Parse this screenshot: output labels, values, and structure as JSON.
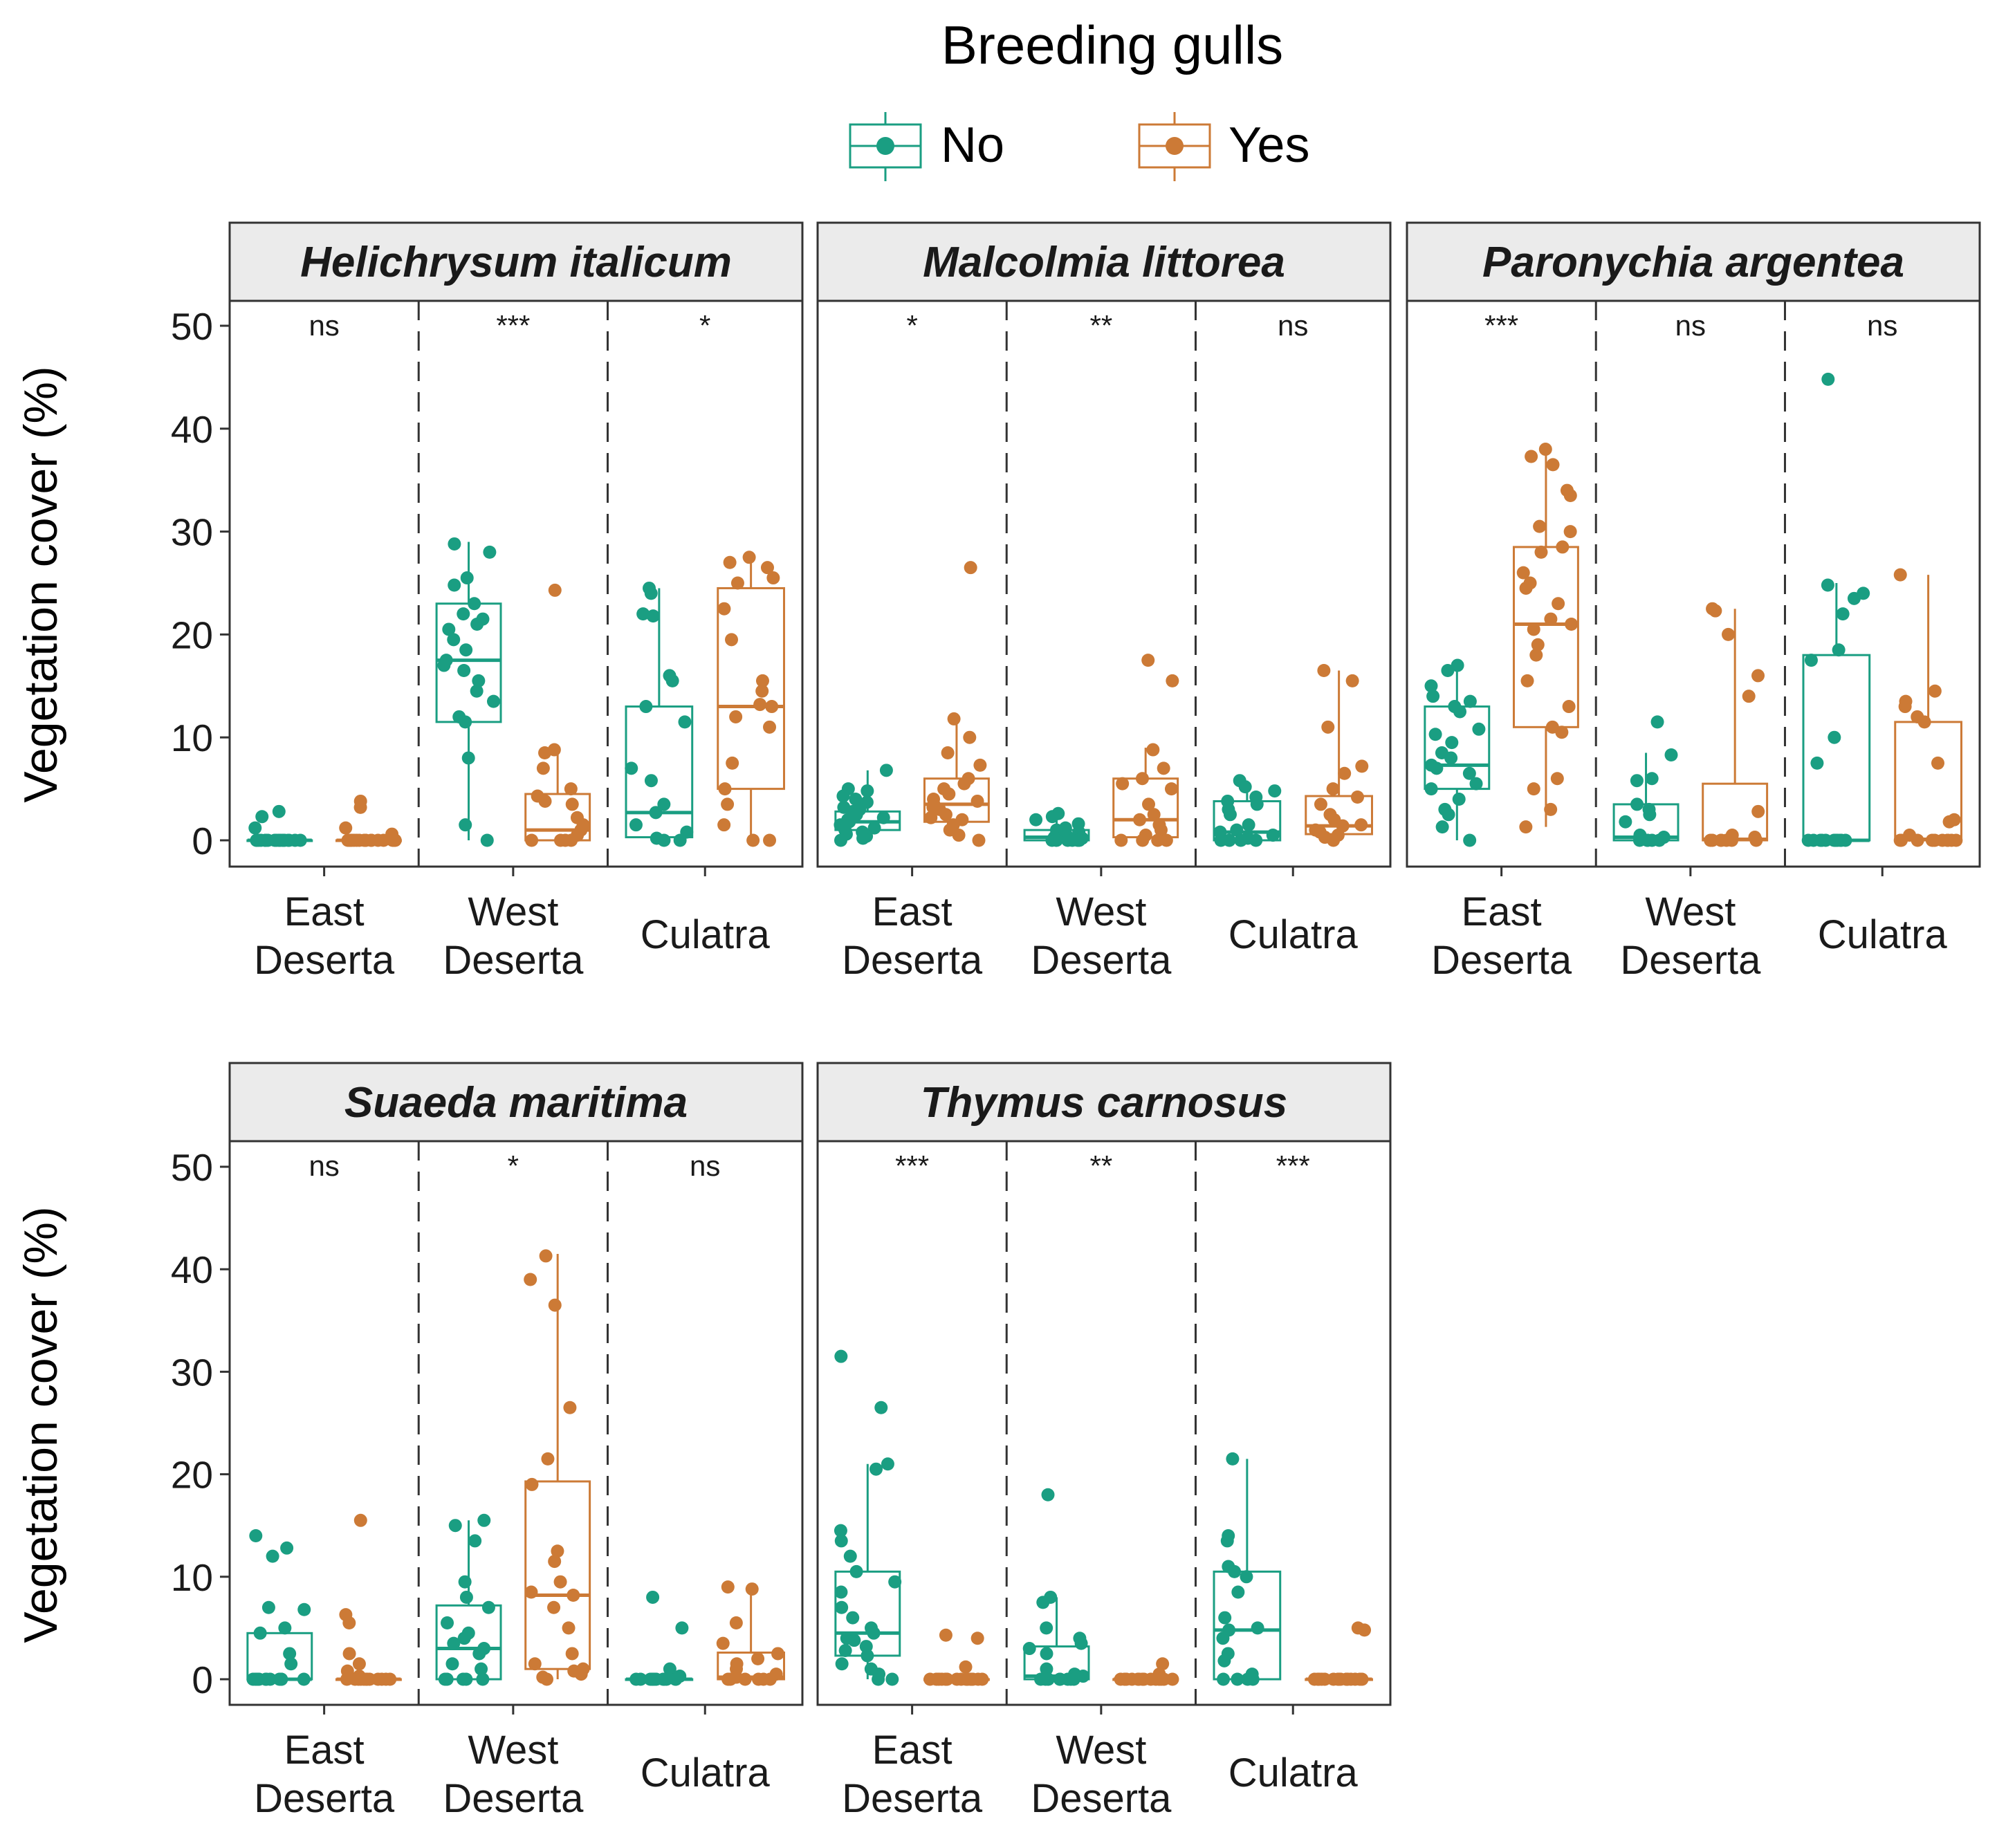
{
  "legend": {
    "title": "Breeding gulls",
    "items": [
      {
        "label": "No",
        "color": "#1a9e82"
      },
      {
        "label": "Yes",
        "color": "#cc7a36"
      }
    ]
  },
  "chart_data": {
    "type": "boxplot-jitter",
    "ylabel": "Vegetation cover (%)",
    "ylim": [
      0,
      50
    ],
    "yticks": [
      0,
      10,
      20,
      30,
      40,
      50
    ],
    "groups": [
      "No",
      "Yes"
    ],
    "sites": [
      "East Deserta",
      "West Deserta",
      "Culatra"
    ],
    "panels": [
      {
        "species": "Helichrysum italicum",
        "significance": [
          "ns",
          "***",
          "*"
        ],
        "sites": [
          {
            "No": {
              "q1": 0,
              "median": 0,
              "q3": 0,
              "wlo": 0,
              "whi": 0,
              "points": [
                0,
                0,
                0,
                0,
                0,
                0,
                0,
                0,
                0,
                0,
                0,
                0,
                0,
                0,
                0,
                0,
                0,
                0,
                0,
                2.8,
                2.3,
                1.2
              ]
            },
            "Yes": {
              "q1": 0,
              "median": 0,
              "q3": 0,
              "wlo": 0,
              "whi": 0,
              "points": [
                0,
                0,
                0,
                0,
                0,
                0,
                0,
                0,
                0,
                0,
                0,
                0,
                0,
                0,
                0,
                0,
                0,
                0,
                3.8,
                3.2,
                1.2,
                0.6
              ]
            }
          },
          {
            "No": {
              "q1": 11.5,
              "median": 17.5,
              "q3": 23,
              "wlo": 0,
              "whi": 29,
              "points": [
                28.8,
                28,
                25.5,
                24.8,
                23,
                22,
                21.5,
                21,
                20.5,
                19.5,
                18.5,
                17.5,
                17,
                16.5,
                15.5,
                14.5,
                13.5,
                12,
                11.5,
                8,
                1.5,
                0
              ]
            },
            "Yes": {
              "q1": 0,
              "median": 1,
              "q3": 4.5,
              "wlo": 0,
              "whi": 9,
              "points": [
                24.3,
                8.8,
                8.5,
                7,
                5,
                4.3,
                3.8,
                3.5,
                2.2,
                1.5,
                1,
                0.5,
                0,
                0,
                0,
                0
              ]
            }
          },
          {
            "No": {
              "q1": 0.3,
              "median": 2.7,
              "q3": 13,
              "wlo": 0,
              "whi": 24.5,
              "points": [
                24.5,
                24,
                22,
                21.8,
                16,
                15.5,
                13,
                11.5,
                7,
                5.8,
                3.5,
                2.7,
                1.5,
                0.8,
                0.2,
                0,
                0
              ]
            },
            "Yes": {
              "q1": 5,
              "median": 13,
              "q3": 24.5,
              "wlo": 0,
              "whi": 27.5,
              "points": [
                27.5,
                27,
                26.5,
                25.5,
                25,
                22.5,
                19.5,
                15.5,
                14.5,
                13.2,
                13,
                12,
                11,
                7.5,
                5,
                3.5,
                1.5,
                0,
                0
              ]
            }
          }
        ]
      },
      {
        "species": "Malcolmia littorea",
        "significance": [
          "*",
          "**",
          "ns"
        ],
        "sites": [
          {
            "No": {
              "q1": 1,
              "median": 1.8,
              "q3": 2.8,
              "wlo": 0,
              "whi": 6.8,
              "points": [
                6.8,
                5,
                4.8,
                4.3,
                4,
                3.7,
                3.2,
                3,
                2.8,
                2.5,
                2.2,
                2,
                1.8,
                1.5,
                1.2,
                1,
                0.8,
                0.6,
                0.4,
                0.2,
                0
              ]
            },
            "Yes": {
              "q1": 1.8,
              "median": 3.5,
              "q3": 6,
              "wlo": 0,
              "whi": 12,
              "points": [
                26.5,
                11.8,
                10,
                8.5,
                7.3,
                6,
                5.5,
                5,
                4.5,
                4,
                3.8,
                3.5,
                3.2,
                3,
                2.5,
                2.2,
                2,
                1.5,
                1,
                0.5,
                0
              ]
            }
          },
          {
            "No": {
              "q1": 0,
              "median": 0.3,
              "q3": 1,
              "wlo": 0,
              "whi": 2.6,
              "points": [
                2.6,
                2.3,
                2,
                1.6,
                1.2,
                1,
                0.8,
                0.5,
                0.3,
                0.2,
                0,
                0,
                0,
                0,
                0,
                0
              ]
            },
            "Yes": {
              "q1": 0.3,
              "median": 2,
              "q3": 6,
              "wlo": 0,
              "whi": 9,
              "points": [
                17.5,
                15.5,
                8.8,
                7,
                6,
                5.5,
                5,
                3.5,
                2.5,
                2,
                1.5,
                1,
                0.5,
                0,
                0,
                0,
                0
              ]
            }
          },
          {
            "No": {
              "q1": 0,
              "median": 0.8,
              "q3": 3.8,
              "wlo": 0,
              "whi": 5.8,
              "points": [
                5.8,
                5.2,
                4.8,
                4.2,
                3.8,
                3.5,
                3,
                2.5,
                1.5,
                1,
                0.8,
                0.5,
                0.2,
                0,
                0,
                0,
                0
              ]
            },
            "Yes": {
              "q1": 0.6,
              "median": 1.4,
              "q3": 4.3,
              "wlo": 0,
              "whi": 16.5,
              "points": [
                16.5,
                15.5,
                11,
                7.2,
                6.5,
                5,
                4.2,
                3.5,
                2.5,
                2,
                1.5,
                1.4,
                1,
                0.8,
                0.5,
                0.3,
                0
              ]
            }
          }
        ]
      },
      {
        "species": "Paronychia argentea",
        "significance": [
          "***",
          "ns",
          "ns"
        ],
        "sites": [
          {
            "No": {
              "q1": 5,
              "median": 7.3,
              "q3": 13,
              "wlo": 0,
              "whi": 17,
              "points": [
                17,
                16.5,
                15,
                14,
                13.5,
                13,
                12.5,
                10.8,
                10.3,
                9.5,
                8.5,
                8,
                7.3,
                7,
                6.5,
                5.5,
                5,
                4,
                3,
                2.5,
                1.3,
                0
              ]
            },
            "Yes": {
              "q1": 11,
              "median": 21,
              "q3": 28.5,
              "wlo": 1.3,
              "whi": 38,
              "points": [
                38,
                37.3,
                36.5,
                34,
                33.5,
                30.5,
                30,
                28.5,
                28,
                26,
                25,
                24.5,
                23,
                21.5,
                21,
                20.5,
                19,
                18,
                15.5,
                13,
                11,
                10.5,
                6,
                5,
                3,
                1.3
              ]
            }
          },
          {
            "No": {
              "q1": 0,
              "median": 0.3,
              "q3": 3.5,
              "wlo": 0,
              "whi": 8.5,
              "points": [
                11.5,
                8.3,
                6,
                5.8,
                3.5,
                3,
                2.5,
                1.8,
                0.5,
                0.3,
                0,
                0,
                0,
                0,
                0
              ]
            },
            "Yes": {
              "q1": 0,
              "median": 0.1,
              "q3": 5.5,
              "wlo": 0,
              "whi": 22.5,
              "points": [
                22.5,
                22.3,
                20,
                16,
                14,
                2.8,
                0.5,
                0.3,
                0,
                0,
                0,
                0,
                0,
                0,
                0
              ]
            }
          },
          {
            "No": {
              "q1": 0,
              "median": 0,
              "q3": 18,
              "wlo": 0,
              "whi": 25,
              "points": [
                44.8,
                24.8,
                24,
                23.5,
                22,
                18.5,
                17.5,
                10,
                7.5,
                0,
                0,
                0,
                0,
                0,
                0,
                0,
                0,
                0,
                0,
                0,
                0,
                0
              ]
            },
            "Yes": {
              "q1": 0,
              "median": 0.1,
              "q3": 11.5,
              "wlo": 0,
              "whi": 25.8,
              "points": [
                25.8,
                14.5,
                13.5,
                13,
                12,
                11.5,
                7.5,
                2,
                1.8,
                0.5,
                0,
                0,
                0,
                0,
                0,
                0,
                0,
                0,
                0,
                0
              ]
            }
          }
        ]
      },
      {
        "species": "Suaeda maritima",
        "significance": [
          "ns",
          "*",
          "ns"
        ],
        "sites": [
          {
            "No": {
              "q1": 0,
              "median": 0,
              "q3": 4.5,
              "wlo": 0,
              "whi": 4.5,
              "points": [
                14,
                12.8,
                12,
                7,
                6.8,
                5,
                4.5,
                2.5,
                1.5,
                0,
                0,
                0,
                0,
                0,
                0,
                0,
                0,
                0,
                0,
                0
              ]
            },
            "Yes": {
              "q1": 0,
              "median": 0,
              "q3": 0,
              "wlo": 0,
              "whi": 0,
              "points": [
                15.5,
                6.3,
                5.5,
                2.5,
                1.5,
                0.8,
                0.3,
                0,
                0,
                0,
                0,
                0,
                0,
                0,
                0,
                0,
                0,
                0,
                0
              ]
            }
          },
          {
            "No": {
              "q1": 0,
              "median": 3,
              "q3": 7.2,
              "wlo": 0,
              "whi": 15.5,
              "points": [
                15.5,
                15,
                13.5,
                9.5,
                8,
                7,
                5.5,
                4.5,
                4,
                3.5,
                3,
                2.5,
                1.5,
                1,
                0,
                0,
                0,
                0,
                0
              ]
            },
            "Yes": {
              "q1": 1,
              "median": 8.2,
              "q3": 19.3,
              "wlo": 0,
              "whi": 41.5,
              "points": [
                41.3,
                39,
                36.5,
                26.5,
                21.5,
                19,
                12.5,
                11.5,
                9.5,
                8.5,
                8.2,
                7,
                5,
                2.5,
                1.5,
                1,
                0.8,
                0.5,
                0.2,
                0
              ]
            }
          },
          {
            "No": {
              "q1": 0,
              "median": 0,
              "q3": 0,
              "wlo": 0,
              "whi": 0,
              "points": [
                8,
                5,
                1,
                0.3,
                0,
                0,
                0,
                0,
                0,
                0,
                0,
                0,
                0,
                0,
                0,
                0
              ]
            },
            "Yes": {
              "q1": 0,
              "median": 0.2,
              "q3": 2.6,
              "wlo": 0,
              "whi": 9,
              "points": [
                9,
                8.8,
                5.5,
                3.5,
                2.5,
                2,
                1.5,
                1,
                0.5,
                0.2,
                0,
                0,
                0,
                0,
                0,
                0
              ]
            }
          }
        ]
      },
      {
        "species": "Thymus carnosus",
        "significance": [
          "***",
          "**",
          "***"
        ],
        "sites": [
          {
            "No": {
              "q1": 2.3,
              "median": 4.5,
              "q3": 10.5,
              "wlo": 0,
              "whi": 21,
              "points": [
                31.5,
                26.5,
                21,
                20.5,
                14.5,
                13.5,
                12,
                10.5,
                9.5,
                8.5,
                7,
                6,
                5,
                4.5,
                4,
                3.8,
                3.2,
                2.8,
                2.3,
                1.5,
                1,
                0.5,
                0,
                0
              ]
            },
            "Yes": {
              "q1": 0,
              "median": 0,
              "q3": 0,
              "wlo": 0,
              "whi": 0,
              "points": [
                4.3,
                4,
                1.2,
                0,
                0,
                0,
                0,
                0,
                0,
                0,
                0,
                0,
                0,
                0,
                0,
                0,
                0,
                0
              ]
            }
          },
          {
            "No": {
              "q1": 0,
              "median": 0.3,
              "q3": 3.2,
              "wlo": 0,
              "whi": 8,
              "points": [
                18,
                8,
                7.5,
                5,
                4,
                3.5,
                3,
                2.5,
                1,
                0.5,
                0.3,
                0,
                0,
                0,
                0,
                0,
                0,
                0,
                0
              ]
            },
            "Yes": {
              "q1": 0,
              "median": 0,
              "q3": 0,
              "wlo": 0,
              "whi": 0,
              "points": [
                1.5,
                0.5,
                0,
                0,
                0,
                0,
                0,
                0,
                0,
                0,
                0,
                0,
                0,
                0,
                0,
                0
              ]
            }
          },
          {
            "No": {
              "q1": 0,
              "median": 4.8,
              "q3": 10.5,
              "wlo": 0,
              "whi": 21.5,
              "points": [
                21.5,
                14,
                13.5,
                11,
                10.5,
                10,
                8.5,
                6,
                5,
                4.8,
                4,
                2.5,
                1.8,
                0.5,
                0,
                0,
                0,
                0
              ]
            },
            "Yes": {
              "q1": 0,
              "median": 0,
              "q3": 0,
              "wlo": 0,
              "whi": 0,
              "points": [
                5,
                4.8,
                0,
                0,
                0,
                0,
                0,
                0,
                0,
                0,
                0,
                0,
                0,
                0,
                0,
                0,
                0,
                0
              ]
            }
          }
        ]
      }
    ]
  }
}
